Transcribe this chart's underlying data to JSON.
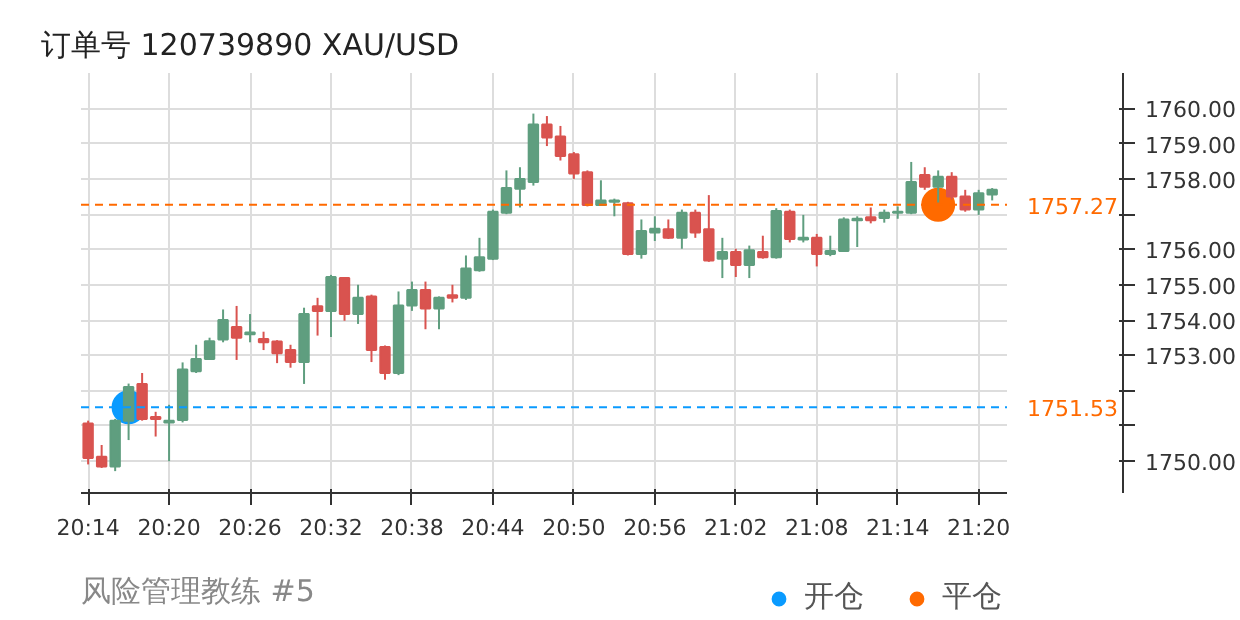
{
  "chart_data": {
    "type": "candlestick",
    "title": "订单号 120739890    XAU/USD",
    "annotations": [
      "风险管理教练 #5"
    ],
    "x": [
      20.2333,
      20.25,
      20.2667,
      20.2833,
      20.3,
      20.3167,
      20.3333,
      20.35,
      20.3667,
      20.3833,
      20.4,
      20.4167,
      20.4333,
      20.45,
      20.4667,
      20.4833,
      20.5,
      20.5167,
      20.5333,
      20.55,
      20.5667,
      20.5833,
      20.6,
      20.6167,
      20.6333,
      20.65,
      20.6667,
      20.6833,
      20.7,
      20.7167,
      20.7333,
      20.75,
      20.7667,
      20.7833,
      20.8,
      20.8167,
      20.8333,
      20.85,
      20.8667,
      20.8833,
      20.9,
      20.9167,
      20.9333,
      20.95,
      20.9667,
      20.9833,
      21.0,
      21.0167,
      21.0333,
      21.05,
      21.0667,
      21.0833,
      21.1,
      21.1167,
      21.1333,
      21.15,
      21.1667,
      21.1833,
      21.2,
      21.2167,
      21.2333,
      21.25,
      21.2667,
      21.2833,
      21.3,
      21.3167,
      21.3333,
      21.35
    ],
    "ohlc": [
      [
        1751.07,
        1751.15,
        1749.91,
        1750.09
      ],
      [
        1750.13,
        1750.46,
        1749.81,
        1749.85
      ],
      [
        1749.85,
        1751.2,
        1749.72,
        1751.15
      ],
      [
        1751.15,
        1752.2,
        1750.6,
        1752.1
      ],
      [
        1752.19,
        1752.5,
        1751.15,
        1751.2
      ],
      [
        1751.25,
        1751.4,
        1750.7,
        1751.2
      ],
      [
        1751.1,
        1751.6,
        1750.0,
        1751.15
      ],
      [
        1751.17,
        1752.8,
        1751.1,
        1752.6
      ],
      [
        1752.55,
        1753.3,
        1752.5,
        1752.9
      ],
      [
        1752.9,
        1753.5,
        1752.87,
        1753.4
      ],
      [
        1753.45,
        1754.3,
        1753.37,
        1754.0
      ],
      [
        1753.8,
        1754.4,
        1752.87,
        1753.5
      ],
      [
        1753.6,
        1754.17,
        1753.37,
        1753.65
      ],
      [
        1753.46,
        1753.67,
        1753.15,
        1753.37
      ],
      [
        1753.39,
        1753.43,
        1752.78,
        1753.06
      ],
      [
        1753.15,
        1753.3,
        1752.65,
        1752.81
      ],
      [
        1752.81,
        1754.35,
        1752.19,
        1754.17
      ],
      [
        1754.39,
        1754.63,
        1753.56,
        1754.26
      ],
      [
        1754.26,
        1755.28,
        1753.52,
        1755.22
      ],
      [
        1755.19,
        1755.22,
        1753.98,
        1754.17
      ],
      [
        1754.17,
        1755.0,
        1753.89,
        1754.63
      ],
      [
        1754.67,
        1754.72,
        1752.81,
        1753.15
      ],
      [
        1753.24,
        1753.28,
        1752.31,
        1752.5
      ],
      [
        1752.5,
        1754.81,
        1752.44,
        1754.41
      ],
      [
        1754.41,
        1755.09,
        1754.26,
        1754.85
      ],
      [
        1754.85,
        1755.09,
        1753.74,
        1754.33
      ],
      [
        1754.33,
        1754.67,
        1753.74,
        1754.63
      ],
      [
        1754.7,
        1755.0,
        1754.5,
        1754.63
      ],
      [
        1754.63,
        1755.83,
        1754.57,
        1755.46
      ],
      [
        1755.41,
        1756.33,
        1755.37,
        1755.78
      ],
      [
        1755.74,
        1757.13,
        1755.7,
        1757.07
      ],
      [
        1757.04,
        1758.24,
        1757.0,
        1757.74
      ],
      [
        1757.72,
        1758.33,
        1757.19,
        1758.0
      ],
      [
        1757.91,
        1759.85,
        1757.81,
        1759.54
      ],
      [
        1759.54,
        1759.78,
        1758.93,
        1759.17
      ],
      [
        1759.2,
        1759.5,
        1758.52,
        1758.65
      ],
      [
        1758.7,
        1758.76,
        1758.0,
        1758.15
      ],
      [
        1758.19,
        1758.24,
        1757.22,
        1757.26
      ],
      [
        1757.26,
        1757.96,
        1757.24,
        1757.39
      ],
      [
        1757.35,
        1757.44,
        1756.94,
        1757.39
      ],
      [
        1757.31,
        1757.35,
        1755.83,
        1755.87
      ],
      [
        1755.87,
        1756.85,
        1755.74,
        1756.52
      ],
      [
        1756.48,
        1756.94,
        1756.24,
        1756.59
      ],
      [
        1756.57,
        1756.85,
        1756.3,
        1756.33
      ],
      [
        1756.33,
        1757.13,
        1756.02,
        1757.04
      ],
      [
        1757.04,
        1757.13,
        1756.33,
        1756.48
      ],
      [
        1756.57,
        1757.54,
        1755.65,
        1755.69
      ],
      [
        1755.74,
        1756.33,
        1755.19,
        1755.93
      ],
      [
        1755.93,
        1756.02,
        1755.22,
        1755.56
      ],
      [
        1755.56,
        1756.11,
        1755.19,
        1755.98
      ],
      [
        1755.93,
        1756.39,
        1755.74,
        1755.78
      ],
      [
        1755.78,
        1757.17,
        1755.74,
        1757.09
      ],
      [
        1757.07,
        1757.13,
        1756.2,
        1756.3
      ],
      [
        1756.28,
        1756.98,
        1756.2,
        1756.33
      ],
      [
        1756.33,
        1756.44,
        1755.52,
        1755.87
      ],
      [
        1755.87,
        1756.39,
        1755.81,
        1755.96
      ],
      [
        1755.96,
        1756.91,
        1755.93,
        1756.85
      ],
      [
        1756.83,
        1756.94,
        1756.07,
        1756.87
      ],
      [
        1756.91,
        1757.19,
        1756.74,
        1756.83
      ],
      [
        1756.89,
        1757.13,
        1756.76,
        1757.04
      ],
      [
        1757.04,
        1757.22,
        1756.87,
        1757.07
      ],
      [
        1757.04,
        1758.48,
        1757.0,
        1757.91
      ],
      [
        1758.11,
        1758.33,
        1757.69,
        1757.78
      ],
      [
        1757.78,
        1758.24,
        1757.33,
        1758.06
      ],
      [
        1758.06,
        1758.19,
        1757.41,
        1757.5
      ],
      [
        1757.5,
        1757.69,
        1757.07,
        1757.13
      ],
      [
        1757.13,
        1757.69,
        1756.98,
        1757.59
      ],
      [
        1757.56,
        1757.74,
        1757.39,
        1757.69
      ]
    ],
    "colors": [
      "#d9534f",
      "#d9534f",
      "#5f9e7f",
      "#5f9e7f",
      "#d9534f",
      "#d9534f",
      "#5f9e7f",
      "#5f9e7f",
      "#5f9e7f",
      "#5f9e7f",
      "#5f9e7f",
      "#d9534f",
      "#5f9e7f",
      "#d9534f",
      "#d9534f",
      "#d9534f",
      "#5f9e7f",
      "#d9534f",
      "#5f9e7f",
      "#d9534f",
      "#5f9e7f",
      "#d9534f",
      "#d9534f",
      "#5f9e7f",
      "#5f9e7f",
      "#d9534f",
      "#5f9e7f",
      "#d9534f",
      "#5f9e7f",
      "#5f9e7f",
      "#5f9e7f",
      "#5f9e7f",
      "#5f9e7f",
      "#5f9e7f",
      "#d9534f",
      "#d9534f",
      "#d9534f",
      "#d9534f",
      "#5f9e7f",
      "#5f9e7f",
      "#d9534f",
      "#5f9e7f",
      "#5f9e7f",
      "#d9534f",
      "#5f9e7f",
      "#d9534f",
      "#d9534f",
      "#5f9e7f",
      "#d9534f",
      "#5f9e7f",
      "#d9534f",
      "#5f9e7f",
      "#d9534f",
      "#5f9e7f",
      "#d9534f",
      "#5f9e7f",
      "#5f9e7f",
      "#5f9e7f",
      "#d9534f",
      "#5f9e7f",
      "#5f9e7f",
      "#5f9e7f",
      "#d9534f",
      "#5f9e7f",
      "#d9534f",
      "#d9534f",
      "#5f9e7f",
      "#5f9e7f"
    ],
    "series": [
      {
        "type": "scatter",
        "name": "开仓",
        "color": "#0a9bff",
        "x": [
          20.2833
        ],
        "values": [
          1751.53
        ]
      },
      {
        "type": "scatter",
        "name": "平仓",
        "color": "#ff6a00",
        "x": [
          21.2833
        ],
        "values": [
          1757.27
        ]
      }
    ],
    "marker": "circle",
    "ref_lines": [
      {
        "axis": "y",
        "value": 1757.27,
        "label": "1757.27",
        "color": "#ff6a00",
        "line_style": "dashed"
      },
      {
        "axis": "y",
        "value": 1751.53,
        "label": "1751.53",
        "color": "#0a9bff",
        "line_style": "dashed"
      }
    ],
    "xlim": [
      20.2245,
      21.3683
    ],
    "ylim": [
      1749.1,
      1761.0
    ],
    "xticks": [
      {
        "value": 20.2333,
        "label": "20:14"
      },
      {
        "value": 20.3333,
        "label": "20:20"
      },
      {
        "value": 20.4333,
        "label": "20:26"
      },
      {
        "value": 20.5333,
        "label": "20:32"
      },
      {
        "value": 20.6333,
        "label": "20:38"
      },
      {
        "value": 20.7333,
        "label": "20:44"
      },
      {
        "value": 20.8333,
        "label": "20:50"
      },
      {
        "value": 20.9333,
        "label": "20:56"
      },
      {
        "value": 21.0333,
        "label": "21:02"
      },
      {
        "value": 21.1333,
        "label": "21:08"
      },
      {
        "value": 21.2333,
        "label": "21:14"
      },
      {
        "value": 21.3333,
        "label": "21:20"
      }
    ],
    "yticks": [
      {
        "value": 1750,
        "label": "1750.00"
      },
      {
        "value": 1751,
        "label": null
      },
      {
        "value": 1752,
        "label": null
      },
      {
        "value": 1753,
        "label": "1753.00"
      },
      {
        "value": 1754,
        "label": "1754.00"
      },
      {
        "value": 1755,
        "label": "1755.00"
      },
      {
        "value": 1756,
        "label": "1756.00"
      },
      {
        "value": 1757,
        "label": null
      },
      {
        "value": 1758,
        "label": "1758.00"
      },
      {
        "value": 1759,
        "label": "1759.00"
      },
      {
        "value": 1760,
        "label": "1760.00"
      }
    ],
    "grid": true,
    "legend": "bottom right"
  }
}
